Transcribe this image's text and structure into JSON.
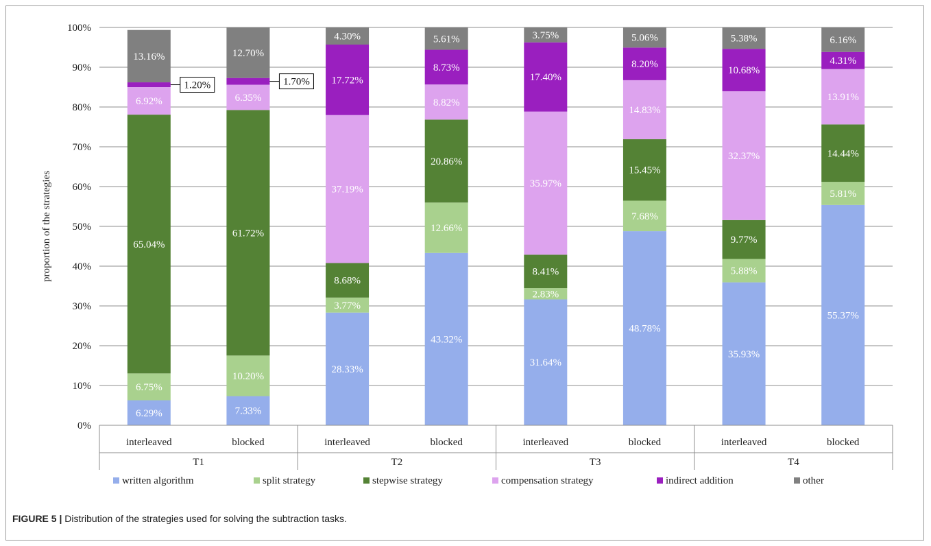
{
  "chart_data": {
    "type": "bar",
    "stacked": true,
    "ylabel": "proportion of the strategies",
    "ylim": [
      0,
      100
    ],
    "yticks": [
      "0%",
      "10%",
      "20%",
      "30%",
      "40%",
      "50%",
      "60%",
      "70%",
      "80%",
      "90%",
      "100%"
    ],
    "groups": [
      "T1",
      "T2",
      "T3",
      "T4"
    ],
    "categories": [
      "interleaved",
      "blocked",
      "interleaved",
      "blocked",
      "interleaved",
      "blocked",
      "interleaved",
      "blocked"
    ],
    "series": [
      {
        "name": "written algorithm",
        "color": "#95aeeb",
        "values": [
          6.29,
          7.33,
          28.33,
          43.32,
          31.64,
          48.78,
          35.93,
          55.37
        ],
        "labels": [
          "6.29%",
          "7.33%",
          "28.33%",
          "43.32%",
          "31.64%",
          "48.78%",
          "35.93%",
          "55.37%"
        ]
      },
      {
        "name": "split strategy",
        "color": "#a9d18e",
        "values": [
          6.75,
          10.2,
          3.77,
          12.66,
          2.83,
          7.68,
          5.88,
          5.81
        ],
        "labels": [
          "6.75%",
          "10.20%",
          "3.77%",
          "12.66%",
          "2.83%",
          "7.68%",
          "5.88%",
          "5.81%"
        ]
      },
      {
        "name": "stepwise strategy",
        "color": "#548235",
        "values": [
          65.04,
          61.72,
          8.68,
          20.86,
          8.41,
          15.45,
          9.77,
          14.44
        ],
        "labels": [
          "65.04%",
          "61.72%",
          "8.68%",
          "20.86%",
          "8.41%",
          "15.45%",
          "9.77%",
          "14.44%"
        ]
      },
      {
        "name": "compensation strategy",
        "color": "#dda3ee",
        "values": [
          6.92,
          6.35,
          37.19,
          8.82,
          35.97,
          14.83,
          32.37,
          13.91
        ],
        "labels": [
          "6.92%",
          "6.35%",
          "37.19%",
          "8.82%",
          "35.97%",
          "14.83%",
          "32.37%",
          "13.91%"
        ]
      },
      {
        "name": "indirect addition",
        "color": "#9a1fbf",
        "values": [
          1.2,
          1.7,
          17.72,
          8.73,
          17.4,
          8.2,
          10.68,
          4.31
        ],
        "labels": [
          "1.20%",
          "1.70%",
          "17.72%",
          "8.73%",
          "17.40%",
          "8.20%",
          "10.68%",
          "4.31%"
        ]
      },
      {
        "name": "other",
        "color": "#808080",
        "values": [
          13.16,
          12.7,
          4.3,
          5.61,
          3.75,
          5.06,
          5.38,
          6.16
        ],
        "labels": [
          "13.16%",
          "12.70%",
          "4.30%",
          "5.61%",
          "3.75%",
          "5.06%",
          "5.38%",
          "6.16%"
        ]
      }
    ],
    "legend": "bottom",
    "grid": true
  },
  "caption": {
    "label": "FIGURE 5 |",
    "text": " Distribution of the strategies used for solving the subtraction tasks."
  }
}
